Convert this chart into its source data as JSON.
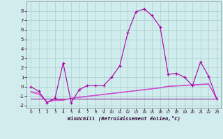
{
  "xlabel": "Windchill (Refroidissement éolien,°C)",
  "x": [
    0,
    1,
    2,
    3,
    4,
    5,
    6,
    7,
    8,
    9,
    10,
    11,
    12,
    13,
    14,
    15,
    16,
    17,
    18,
    19,
    20,
    21,
    22,
    23
  ],
  "main_y": [
    0.0,
    -0.5,
    -1.7,
    -1.2,
    2.5,
    -1.7,
    -0.3,
    0.1,
    0.1,
    0.1,
    1.0,
    2.2,
    5.7,
    7.9,
    8.2,
    7.5,
    6.3,
    1.3,
    1.4,
    1.0,
    0.1,
    2.6,
    1.1,
    -1.3
  ],
  "line2_y": [
    -0.5,
    -0.7,
    -1.6,
    -1.4,
    -1.4,
    -1.2,
    -1.1,
    -1.0,
    -0.9,
    -0.8,
    -0.7,
    -0.6,
    -0.5,
    -0.4,
    -0.3,
    -0.2,
    -0.1,
    0.05,
    0.1,
    0.15,
    0.2,
    0.25,
    0.3,
    -1.3
  ],
  "line3_y": [
    -0.6,
    -0.8,
    -1.65,
    -1.45,
    -1.45,
    -1.25,
    -1.15,
    -1.05,
    -0.95,
    -0.85,
    -0.75,
    -0.65,
    -0.55,
    -0.45,
    -0.35,
    -0.25,
    -0.15,
    0.0,
    0.05,
    0.1,
    0.15,
    0.2,
    0.25,
    -1.3
  ],
  "line4_y": [
    -1.3,
    -1.3,
    -1.3,
    -1.3,
    -1.3,
    -1.3,
    -1.3,
    -1.3,
    -1.3,
    -1.3,
    -1.3,
    -1.3,
    -1.3,
    -1.3,
    -1.3,
    -1.3,
    -1.3,
    -1.3,
    -1.3,
    -1.3,
    -1.3,
    -1.3,
    -1.3,
    -1.3
  ],
  "line_color_main": "#aa00aa",
  "line_color_sub": "#cc44cc",
  "line_color_flat": "#880088",
  "bg_color": "#d0ecec",
  "grid_color": "#a8cece",
  "ylim": [
    -2.3,
    9.0
  ],
  "yticks": [
    -2,
    -1,
    0,
    1,
    2,
    3,
    4,
    5,
    6,
    7,
    8
  ],
  "xlim": [
    -0.5,
    23.5
  ]
}
